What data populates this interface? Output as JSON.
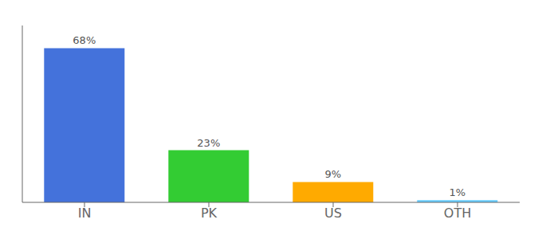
{
  "chart_data": {
    "type": "bar",
    "categories": [
      "IN",
      "PK",
      "US",
      "OTH"
    ],
    "values": [
      68,
      23,
      9,
      1
    ],
    "value_labels": [
      "68%",
      "23%",
      "9%",
      "1%"
    ],
    "data_labels": true,
    "colors": [
      "#4472db",
      "#33cc33",
      "#ffaa00",
      "#66ccff"
    ],
    "ylim": [
      0,
      78
    ],
    "tick_labels": "x",
    "grid": false
  }
}
